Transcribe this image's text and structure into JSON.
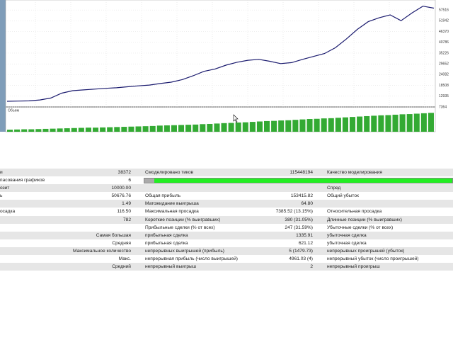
{
  "chart_data": [
    {
      "type": "line",
      "color": "#1a1a6e",
      "values": [
        10300,
        10400,
        10500,
        11000,
        12000,
        14500,
        15800,
        16200,
        16600,
        17000,
        17300,
        17800,
        18300,
        18700,
        19500,
        20200,
        21500,
        23500,
        25800,
        27000,
        29000,
        30500,
        31500,
        32000,
        31000,
        29800,
        30300,
        32000,
        33500,
        35000,
        38000,
        42500,
        47500,
        51500,
        53500,
        55000,
        52000,
        56000,
        59500,
        58500
      ],
      "ylim": [
        7000,
        62700
      ],
      "yticks": [
        7364,
        12935,
        18508,
        24082,
        29652,
        35226,
        40786,
        46370,
        51942,
        57516
      ],
      "grid": true
    },
    {
      "type": "bar",
      "title": "Объем",
      "color": "#33aa33",
      "values": [
        10,
        11,
        12,
        12,
        13,
        14,
        15,
        16,
        17,
        18,
        19,
        20,
        20,
        21,
        22,
        23,
        24,
        25,
        26,
        27,
        28,
        30,
        31,
        32,
        33,
        34,
        35,
        37,
        38,
        40,
        42,
        43,
        45,
        46,
        48,
        50,
        52,
        53,
        55,
        56,
        58,
        60,
        62,
        63,
        65,
        66,
        68,
        70,
        72,
        74,
        76,
        78,
        80,
        81,
        83,
        85,
        86,
        88,
        90,
        92
      ],
      "ylim": [
        0,
        100
      ]
    }
  ],
  "report": {
    "rows": [
      [
        "и",
        "38372",
        "Смоделировано тиков",
        "115448194",
        "Качество моделирования"
      ],
      [
        "пасования графиков",
        "6",
        null,
        null,
        null
      ],
      [
        "озит",
        "10000.00",
        null,
        null,
        "Спред"
      ],
      [
        "ь",
        "50676.76",
        "Общая прибыль",
        "153415.82",
        "Общий убыток"
      ],
      [
        null,
        "1.49",
        "Матожидание выигрыша",
        "64.80",
        null
      ],
      [
        "осадка",
        "116.50",
        "Максимальная просадка",
        "7385.52 (13.15%)",
        "Относительная просадка"
      ],
      [
        null,
        "782",
        "Короткие позиции (% выигравших)",
        "380 (31.05%)",
        "Длинные позиции (% выигравших)"
      ],
      [
        null,
        null,
        "Прибыльные сделки (% от всех)",
        "247 (31.59%)",
        "Убыточные сделки (% от всех)"
      ],
      [
        null,
        "Самая большая",
        "прибыльная сделка",
        "1335.91",
        "убыточная сделка"
      ],
      [
        null,
        "Средняя",
        "прибыльная сделка",
        "621.12",
        "убыточная сделка"
      ],
      [
        null,
        "Максимальное количество",
        "непрерывных выигрышей (прибыль)",
        "5 (1479.73)",
        "непрерывных проигрышей (убыток)"
      ],
      [
        null,
        "Макс.",
        "непрерывная прибыль (число выигрышей)",
        "4961.03 (4)",
        "непрерывный убыток (число проигрышей)"
      ],
      [
        null,
        "Средний",
        "непрерывный выигрыш",
        "2",
        "непрерывный проигрыш"
      ]
    ]
  }
}
